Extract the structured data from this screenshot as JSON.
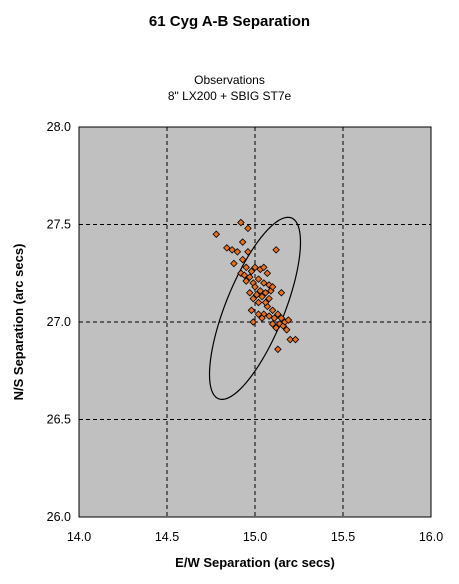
{
  "chart_data": {
    "type": "scatter",
    "title": "61 Cyg A-B Separation",
    "subtitle_lines": [
      "Observations",
      "8\" LX200 + SBIG ST7e"
    ],
    "xlabel": "E/W Separation (arc secs)",
    "ylabel": "N/S Separation (arc secs)",
    "xlim": [
      14.0,
      16.0
    ],
    "ylim": [
      26.0,
      28.0
    ],
    "x_ticks": [
      "14.0",
      "14.5",
      "15.0",
      "15.5",
      "16.0"
    ],
    "y_ticks": [
      "26.0",
      "26.5",
      "27.0",
      "27.5",
      "28.0"
    ],
    "grid": true,
    "colors": {
      "plot_background": "#c0c0c0",
      "marker_fill": "#e8701e",
      "marker_edge": "#000000",
      "grid": "#000000"
    },
    "ellipse": {
      "center": [
        15.0,
        27.07
      ],
      "semi_major": 0.5,
      "semi_minor": 0.15,
      "major_axis_angle_deg": -68
    },
    "series": [
      {
        "points": [
          [
            14.78,
            27.45
          ],
          [
            14.84,
            27.38
          ],
          [
            14.87,
            27.37
          ],
          [
            14.88,
            27.3
          ],
          [
            14.9,
            27.36
          ],
          [
            14.92,
            27.51
          ],
          [
            14.93,
            27.41
          ],
          [
            14.93,
            27.32
          ],
          [
            14.92,
            27.25
          ],
          [
            14.94,
            27.24
          ],
          [
            14.95,
            27.28
          ],
          [
            14.96,
            27.48
          ],
          [
            14.96,
            27.36
          ],
          [
            14.97,
            27.23
          ],
          [
            14.97,
            27.15
          ],
          [
            14.98,
            27.26
          ],
          [
            14.99,
            27.2
          ],
          [
            14.99,
            27.12
          ],
          [
            15.0,
            27.18
          ],
          [
            15.0,
            27.28
          ],
          [
            15.01,
            27.14
          ],
          [
            15.02,
            27.22
          ],
          [
            15.02,
            27.1
          ],
          [
            15.03,
            27.16
          ],
          [
            15.03,
            27.27
          ],
          [
            15.04,
            27.13
          ],
          [
            15.05,
            27.28
          ],
          [
            15.05,
            27.2
          ],
          [
            15.05,
            27.04
          ],
          [
            15.06,
            27.15
          ],
          [
            15.07,
            27.08
          ],
          [
            15.07,
            27.25
          ],
          [
            15.08,
            27.12
          ],
          [
            15.08,
            27.03
          ],
          [
            15.09,
            27.16
          ],
          [
            15.1,
            27.06
          ],
          [
            15.1,
            26.99
          ],
          [
            15.11,
            27.02
          ],
          [
            15.12,
            26.97
          ],
          [
            15.12,
            27.37
          ],
          [
            15.13,
            27.04
          ],
          [
            15.14,
            26.99
          ],
          [
            15.15,
            27.02
          ],
          [
            15.16,
            26.98
          ],
          [
            15.17,
            27.0
          ],
          [
            15.18,
            26.96
          ],
          [
            15.19,
            27.01
          ],
          [
            15.2,
            26.91
          ],
          [
            15.23,
            26.91
          ],
          [
            15.04,
            27.02
          ],
          [
            15.02,
            27.04
          ],
          [
            15.08,
            27.19
          ],
          [
            15.13,
            26.86
          ],
          [
            15.06,
            27.1
          ],
          [
            14.98,
            27.06
          ],
          [
            14.95,
            27.21
          ],
          [
            15.15,
            27.15
          ],
          [
            15.1,
            27.18
          ],
          [
            14.99,
            27.0
          ]
        ]
      }
    ]
  }
}
